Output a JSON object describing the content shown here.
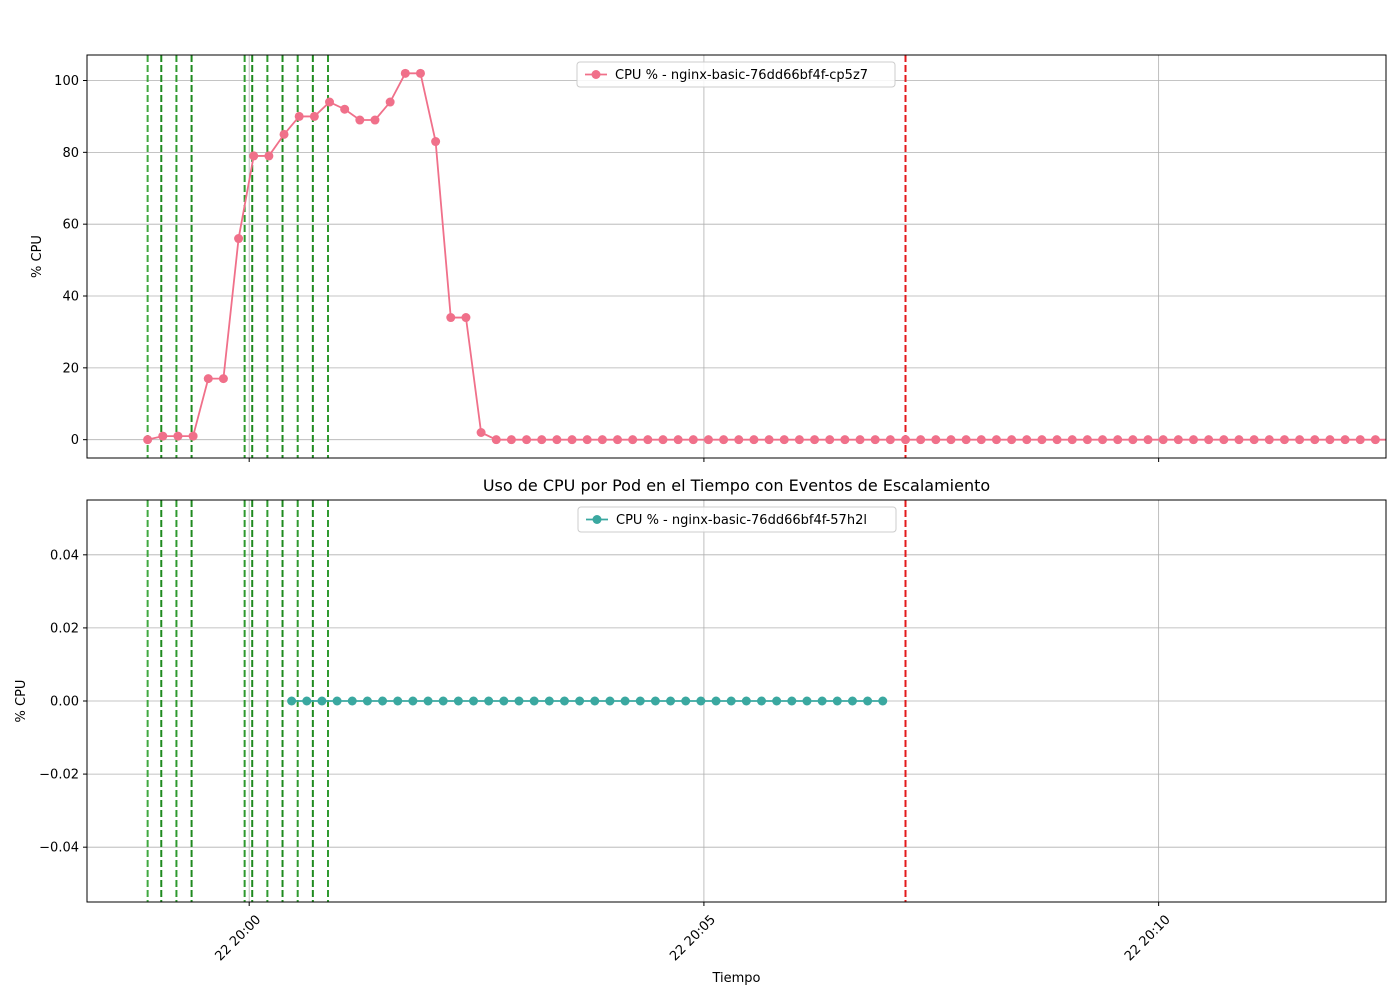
{
  "chart_data": [
    {
      "type": "line",
      "title": "",
      "xlabel": "",
      "ylabel": "% CPU",
      "ylim": [
        -5.1,
        107.1
      ],
      "yticks": [
        0,
        20,
        40,
        60,
        80,
        100
      ],
      "ytick_labels": [
        "0",
        "20",
        "40",
        "60",
        "80",
        "100"
      ],
      "x_range": [
        "19:58:13",
        "20:12:30"
      ],
      "xticks": [
        "20:00:00",
        "20:05:00",
        "20:10:00"
      ],
      "xtick_labels": [
        "22 20:00",
        "22 20:05",
        "22 20:10"
      ],
      "grid": true,
      "legend_position": "upper center",
      "series": [
        {
          "name": "CPU % - nginx-basic-76dd66bf4f-cp5z7",
          "color": "#f0708a",
          "marker": "circle",
          "x_start": "19:58:53",
          "x_step_seconds": 10,
          "values": [
            0,
            1,
            1,
            1,
            17,
            17,
            56,
            79,
            79,
            85,
            90,
            90,
            94,
            92,
            89,
            89,
            94,
            102,
            102,
            83,
            34,
            34,
            2,
            0,
            0,
            0,
            0,
            0,
            0,
            0,
            0,
            0,
            0,
            0,
            0,
            0,
            0,
            0,
            0,
            0,
            0,
            0,
            0,
            0,
            0,
            0,
            0,
            0,
            0,
            0,
            0,
            0,
            0,
            0,
            0,
            0,
            0,
            0,
            0,
            0,
            0,
            0,
            0,
            0,
            0,
            0,
            0,
            0,
            0,
            0,
            0,
            0,
            0,
            0,
            0,
            0,
            0,
            0,
            0,
            0,
            0,
            0,
            0
          ]
        }
      ],
      "vlines": [
        {
          "x": "19:58:53",
          "color": "#2ca02c",
          "style": "dashed",
          "opacity": 0.9
        },
        {
          "x": "19:59:02",
          "color": "#1f8a1f",
          "style": "dashed",
          "opacity": 1
        },
        {
          "x": "19:59:12",
          "color": "#2f9a2f",
          "style": "dashed",
          "opacity": 1
        },
        {
          "x": "19:59:22",
          "color": "#1f8a1f",
          "style": "dashed",
          "opacity": 1
        },
        {
          "x": "19:59:57",
          "color": "#2f9a2f",
          "style": "dashed",
          "opacity": 1
        },
        {
          "x": "20:00:02",
          "color": "#1f8a1f",
          "style": "dashed",
          "opacity": 1
        },
        {
          "x": "20:00:12",
          "color": "#2f9a2f",
          "style": "dashed",
          "opacity": 1
        },
        {
          "x": "20:00:22",
          "color": "#1f8a1f",
          "style": "dashed",
          "opacity": 1
        },
        {
          "x": "20:00:32",
          "color": "#2f9a2f",
          "style": "dashed",
          "opacity": 1
        },
        {
          "x": "20:00:42",
          "color": "#1f8a1f",
          "style": "dashed",
          "opacity": 1
        },
        {
          "x": "20:00:52",
          "color": "#2f9a2f",
          "style": "dashed",
          "opacity": 1
        },
        {
          "x": "20:07:13",
          "color": "#e31a1c",
          "style": "dashed",
          "opacity": 1
        }
      ]
    },
    {
      "type": "line",
      "title": "Uso de CPU por Pod en el Tiempo con Eventos de Escalamiento",
      "xlabel": "Tiempo",
      "ylabel": "% CPU",
      "ylim": [
        -0.055,
        0.055
      ],
      "yticks": [
        -0.04,
        -0.02,
        0,
        0.02,
        0.04
      ],
      "ytick_labels": [
        "−0.04",
        "−0.02",
        "0.00",
        "0.02",
        "0.04"
      ],
      "x_range": [
        "19:58:13",
        "20:12:30"
      ],
      "xticks": [
        "20:00:00",
        "20:05:00",
        "20:10:00"
      ],
      "xtick_labels": [
        "22 20:00",
        "22 20:05",
        "22 20:10"
      ],
      "grid": true,
      "legend_position": "upper center",
      "series": [
        {
          "name": "CPU % - nginx-basic-76dd66bf4f-57h2l",
          "color": "#3aa8a0",
          "marker": "circle",
          "x_start": "20:00:28",
          "x_step_seconds": 10,
          "values": [
            0,
            0,
            0,
            0,
            0,
            0,
            0,
            0,
            0,
            0,
            0,
            0,
            0,
            0,
            0,
            0,
            0,
            0,
            0,
            0,
            0,
            0,
            0,
            0,
            0,
            0,
            0,
            0,
            0,
            0,
            0,
            0,
            0,
            0,
            0,
            0,
            0,
            0,
            0,
            0
          ]
        }
      ],
      "vlines": [
        {
          "x": "19:58:53",
          "color": "#2ca02c",
          "style": "dashed",
          "opacity": 0.9
        },
        {
          "x": "19:59:02",
          "color": "#1f8a1f",
          "style": "dashed",
          "opacity": 1
        },
        {
          "x": "19:59:12",
          "color": "#2f9a2f",
          "style": "dashed",
          "opacity": 1
        },
        {
          "x": "19:59:22",
          "color": "#1f8a1f",
          "style": "dashed",
          "opacity": 1
        },
        {
          "x": "19:59:57",
          "color": "#2f9a2f",
          "style": "dashed",
          "opacity": 1
        },
        {
          "x": "20:00:02",
          "color": "#1f8a1f",
          "style": "dashed",
          "opacity": 1
        },
        {
          "x": "20:00:12",
          "color": "#2f9a2f",
          "style": "dashed",
          "opacity": 1
        },
        {
          "x": "20:00:22",
          "color": "#1f8a1f",
          "style": "dashed",
          "opacity": 1
        },
        {
          "x": "20:00:32",
          "color": "#2f9a2f",
          "style": "dashed",
          "opacity": 1
        },
        {
          "x": "20:00:42",
          "color": "#1f8a1f",
          "style": "dashed",
          "opacity": 1
        },
        {
          "x": "20:00:52",
          "color": "#2f9a2f",
          "style": "dashed",
          "opacity": 1
        },
        {
          "x": "20:07:13",
          "color": "#e31a1c",
          "style": "dashed",
          "opacity": 1
        }
      ]
    }
  ]
}
